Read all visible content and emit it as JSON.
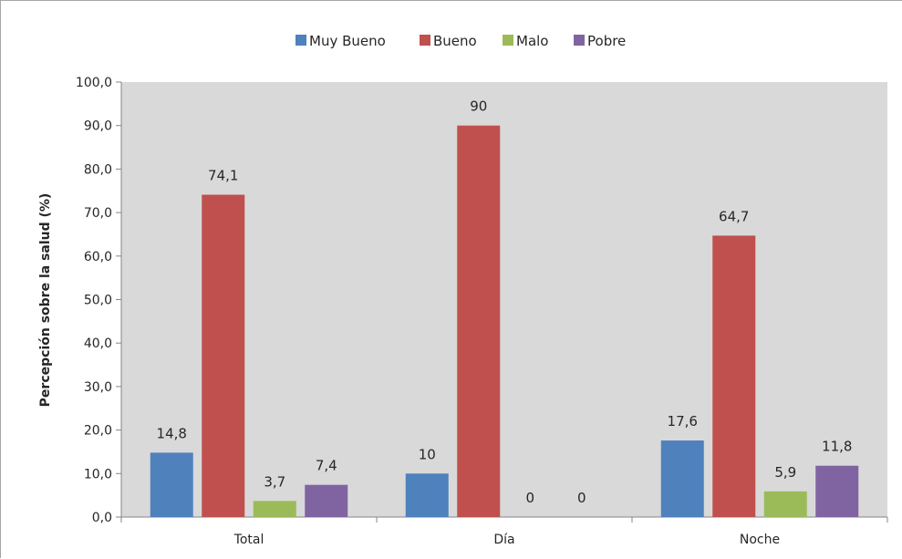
{
  "chart_data": {
    "type": "bar",
    "categories": [
      "Total",
      "Día",
      "Noche"
    ],
    "series": [
      {
        "name": "Muy Bueno",
        "color": "#4f81bd",
        "values": [
          14.8,
          10,
          17.6
        ],
        "labels": [
          "14,8",
          "10",
          "17,6"
        ]
      },
      {
        "name": "Bueno",
        "color": "#c0504d",
        "values": [
          74.1,
          90,
          64.7
        ],
        "labels": [
          "74,1",
          "90",
          "64,7"
        ]
      },
      {
        "name": "Malo",
        "color": "#9bbb59",
        "values": [
          3.7,
          0,
          5.9
        ],
        "labels": [
          "3,7",
          "0",
          "5,9"
        ]
      },
      {
        "name": "Pobre",
        "color": "#8064a2",
        "values": [
          7.4,
          0,
          11.8
        ],
        "labels": [
          "7,4",
          "0",
          "11,8"
        ]
      }
    ],
    "ylabel": "Percepción sobre la salud (%)",
    "xlabel": "",
    "ylim": [
      0,
      100
    ],
    "yticks": [
      "0,0",
      "10,0",
      "20,0",
      "30,0",
      "40,0",
      "50,0",
      "60,0",
      "70,0",
      "80,0",
      "90,0",
      "100,0"
    ],
    "legend_position": "top",
    "plot_background": "#d9d9d9",
    "grid": false
  }
}
